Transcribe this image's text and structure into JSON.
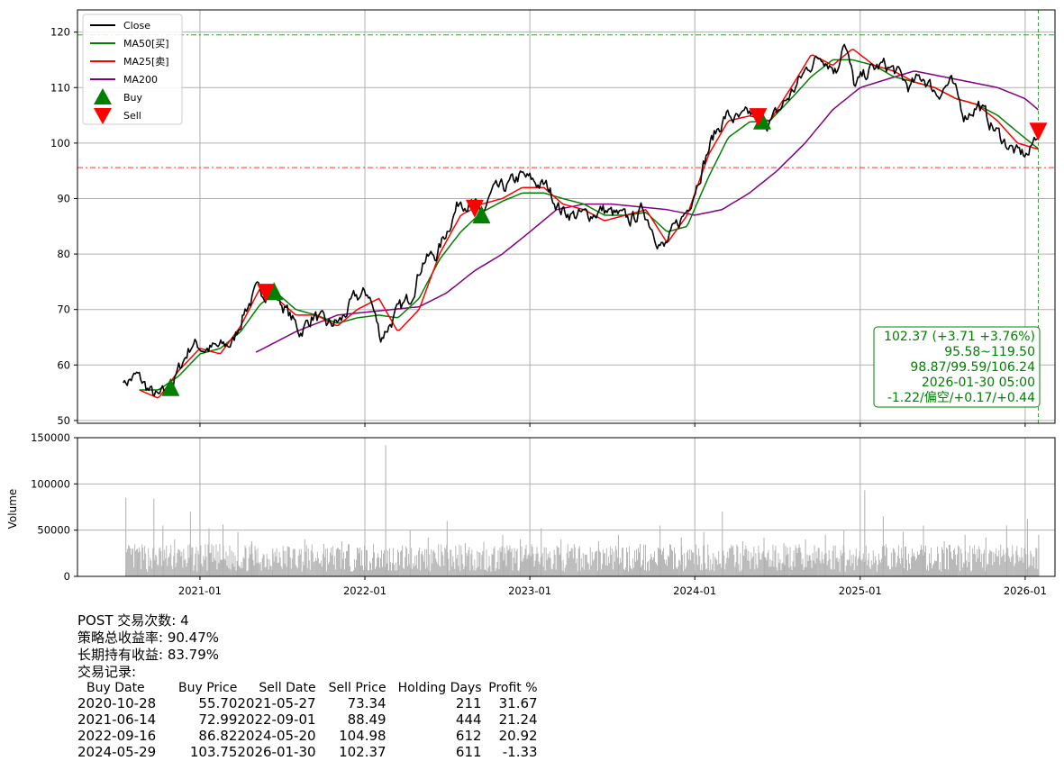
{
  "chart_data": [
    {
      "type": "line",
      "panel": "price",
      "xlim": [
        "2020-04-05",
        "2026-03-08"
      ],
      "ylim": [
        49.5,
        124
      ],
      "x_ticks": [
        "2021-01",
        "2022-01",
        "2023-01",
        "2024-01",
        "2025-01",
        "2026-01"
      ],
      "y_ticks": [
        50,
        60,
        70,
        80,
        90,
        100,
        110,
        120
      ],
      "grid": true,
      "legend_position": "top-left",
      "legend": [
        "Close",
        "MA50[买]",
        "MA25[卖]",
        "MA200",
        "Buy",
        "Sell"
      ],
      "series": [
        {
          "name": "Close",
          "color": "#000000",
          "x": [
            "2020-07-15",
            "2020-08-15",
            "2020-09-15",
            "2020-10-01",
            "2020-10-28",
            "2020-11-20",
            "2020-12-15",
            "2021-01-10",
            "2021-02-10",
            "2021-03-15",
            "2021-04-10",
            "2021-05-05",
            "2021-05-27",
            "2021-06-14",
            "2021-07-10",
            "2021-08-10",
            "2021-09-10",
            "2021-10-10",
            "2021-11-10",
            "2021-12-10",
            "2022-01-10",
            "2022-02-05",
            "2022-03-10",
            "2022-04-10",
            "2022-05-10",
            "2022-06-10",
            "2022-07-10",
            "2022-08-01",
            "2022-09-01",
            "2022-09-16",
            "2022-10-10",
            "2022-11-10",
            "2022-12-10",
            "2023-01-10",
            "2023-02-10",
            "2023-03-10",
            "2023-04-10",
            "2023-05-10",
            "2023-06-10",
            "2023-07-10",
            "2023-08-10",
            "2023-09-10",
            "2023-10-10",
            "2023-10-25",
            "2023-11-15",
            "2023-12-15",
            "2024-01-10",
            "2024-02-10",
            "2024-03-10",
            "2024-04-10",
            "2024-05-01",
            "2024-05-20",
            "2024-05-29",
            "2024-06-20",
            "2024-07-15",
            "2024-08-10",
            "2024-09-10",
            "2024-10-10",
            "2024-11-10",
            "2024-11-25",
            "2024-12-20",
            "2025-01-20",
            "2025-02-20",
            "2025-03-20",
            "2025-04-20",
            "2025-05-20",
            "2025-06-20",
            "2025-07-20",
            "2025-08-20",
            "2025-09-20",
            "2025-10-20",
            "2025-11-20",
            "2025-12-15",
            "2026-01-10",
            "2026-01-30"
          ],
          "values": [
            56.8,
            58,
            55,
            54,
            55.7,
            60,
            64,
            63,
            63,
            64,
            70,
            73,
            73.3,
            73,
            70,
            66,
            69,
            67,
            68,
            72,
            73,
            65,
            69,
            72,
            79,
            80,
            86,
            90,
            88.5,
            86.8,
            91,
            92,
            94,
            93,
            92,
            88,
            87,
            87,
            88,
            87,
            86,
            88,
            83,
            81,
            84,
            88,
            94,
            101,
            105,
            104,
            105,
            105,
            103.8,
            104,
            107,
            110,
            114,
            116,
            113,
            119,
            110,
            113,
            114,
            113,
            110,
            112,
            109,
            111,
            105,
            107,
            103,
            100,
            98,
            98,
            102.4
          ]
        },
        {
          "name": "MA50[买]",
          "color": "#008000",
          "x": [
            "2020-08-20",
            "2020-10-01",
            "2020-11-15",
            "2021-01-01",
            "2021-02-15",
            "2021-04-01",
            "2021-05-15",
            "2021-06-20",
            "2021-08-01",
            "2021-09-15",
            "2021-11-01",
            "2021-12-15",
            "2022-02-01",
            "2022-03-15",
            "2022-05-01",
            "2022-06-15",
            "2022-08-01",
            "2022-09-16",
            "2022-11-01",
            "2022-12-15",
            "2023-02-01",
            "2023-03-15",
            "2023-05-01",
            "2023-06-15",
            "2023-08-01",
            "2023-09-15",
            "2023-11-01",
            "2023-12-15",
            "2024-02-01",
            "2024-03-15",
            "2024-05-01",
            "2024-06-15",
            "2024-08-01",
            "2024-09-15",
            "2024-11-01",
            "2024-12-15",
            "2025-02-01",
            "2025-03-15",
            "2025-05-01",
            "2025-06-15",
            "2025-08-01",
            "2025-09-15",
            "2025-11-01",
            "2025-12-15",
            "2026-01-30"
          ],
          "values": [
            55.5,
            55.5,
            58,
            62,
            63,
            66,
            71,
            73,
            70,
            69,
            67.5,
            68.5,
            69,
            68.5,
            72,
            79,
            84,
            87.5,
            89.5,
            91,
            91,
            90,
            89,
            87,
            87,
            87.5,
            84,
            85,
            94,
            101,
            103.8,
            104,
            108,
            112,
            115,
            115,
            114,
            112,
            111,
            110,
            108,
            107,
            105,
            102,
            99
          ]
        },
        {
          "name": "MA25[卖]",
          "color": "#ff0000",
          "x": [
            "2020-08-20",
            "2020-10-01",
            "2020-11-15",
            "2021-01-01",
            "2021-02-15",
            "2021-04-01",
            "2021-05-15",
            "2021-06-20",
            "2021-08-01",
            "2021-09-15",
            "2021-11-01",
            "2021-12-15",
            "2022-02-01",
            "2022-03-15",
            "2022-05-01",
            "2022-06-15",
            "2022-08-01",
            "2022-09-16",
            "2022-11-01",
            "2022-12-15",
            "2023-02-01",
            "2023-03-15",
            "2023-05-01",
            "2023-06-15",
            "2023-08-01",
            "2023-09-15",
            "2023-11-01",
            "2023-12-15",
            "2024-02-01",
            "2024-03-15",
            "2024-05-01",
            "2024-06-15",
            "2024-08-01",
            "2024-09-15",
            "2024-11-01",
            "2024-12-15",
            "2025-02-01",
            "2025-03-15",
            "2025-05-01",
            "2025-06-15",
            "2025-08-01",
            "2025-09-15",
            "2025-11-01",
            "2025-12-15",
            "2026-01-30"
          ],
          "values": [
            55.5,
            54,
            59,
            63,
            62,
            67,
            74,
            72,
            69,
            69,
            67,
            70,
            72,
            66,
            70,
            80,
            87,
            89,
            90,
            92,
            92,
            89,
            88,
            86,
            87,
            88,
            82,
            87,
            98,
            104,
            104.9,
            104,
            110,
            116,
            114,
            117,
            114,
            113,
            111,
            110,
            108,
            107,
            104,
            100,
            98.9
          ]
        },
        {
          "name": "MA200",
          "color": "#800080",
          "x": [
            "2021-05-05",
            "2021-08-01",
            "2021-11-01",
            "2022-01-01",
            "2022-03-01",
            "2022-05-01",
            "2022-07-01",
            "2022-09-01",
            "2022-11-01",
            "2023-01-01",
            "2023-03-01",
            "2023-05-01",
            "2023-07-01",
            "2023-09-01",
            "2023-11-01",
            "2024-01-01",
            "2024-03-01",
            "2024-05-01",
            "2024-07-01",
            "2024-09-01",
            "2024-11-01",
            "2025-01-01",
            "2025-03-01",
            "2025-05-01",
            "2025-07-01",
            "2025-09-01",
            "2025-11-01",
            "2026-01-01",
            "2026-01-30"
          ],
          "values": [
            62.3,
            66,
            69,
            69.5,
            70,
            70.5,
            73,
            77,
            80,
            84,
            88,
            89,
            89,
            88.5,
            88,
            87,
            88,
            91,
            95,
            100,
            106,
            110,
            111.5,
            113,
            112,
            111,
            110,
            108,
            106
          ]
        }
      ],
      "markers": [
        {
          "name": "Buy",
          "color": "#008000",
          "x": [
            "2020-10-28",
            "2021-06-14",
            "2022-09-16",
            "2024-05-29"
          ],
          "values": [
            55.7,
            72.99,
            86.82,
            103.75
          ]
        },
        {
          "name": "Sell",
          "color": "#ff0000",
          "x": [
            "2021-05-27",
            "2022-09-01",
            "2024-05-20",
            "2026-01-30"
          ],
          "values": [
            73.34,
            88.49,
            104.98,
            102.37
          ]
        }
      ],
      "hlines": [
        {
          "value": 119.5,
          "color": "#008000",
          "style": "dashdot"
        },
        {
          "value": 95.58,
          "color": "#ff0000",
          "style": "dashdot"
        }
      ],
      "vline": {
        "x": "2026-01-30",
        "color": "#008000",
        "style": "dashed"
      },
      "info_box": {
        "lines": [
          "102.37 (+3.71 +3.76%)",
          "95.58~119.50",
          "98.87/99.59/106.24",
          "2026-01-30 05:00",
          "-1.22/偏空/+0.17/+0.44"
        ],
        "color": "#008000"
      }
    },
    {
      "type": "bar",
      "panel": "volume",
      "ylabel": "Volume",
      "ylim": [
        0,
        150000
      ],
      "y_ticks": [
        "0",
        "50000",
        "100000",
        "150000"
      ],
      "xlim": [
        "2020-04-05",
        "2026-03-08"
      ],
      "color": "#b0b0b0",
      "grid": true,
      "series": [
        {
          "name": "Volume",
          "x": [
            "2020-07-20",
            "2020-08-15",
            "2020-09-20",
            "2020-10-10",
            "2020-11-05",
            "2020-12-10",
            "2021-01-20",
            "2021-02-20",
            "2021-03-25",
            "2021-04-25",
            "2021-06-10",
            "2021-07-15",
            "2021-08-20",
            "2021-10-01",
            "2021-11-10",
            "2021-12-20",
            "2022-02-15",
            "2022-04-10",
            "2022-05-20",
            "2022-07-01",
            "2022-08-10",
            "2022-09-20",
            "2022-11-01",
            "2022-12-10",
            "2023-01-25",
            "2023-03-10",
            "2023-04-20",
            "2023-06-01",
            "2023-07-15",
            "2023-09-01",
            "2023-10-15",
            "2023-12-01",
            "2024-01-20",
            "2024-03-01",
            "2024-04-15",
            "2024-06-01",
            "2024-07-15",
            "2024-09-01",
            "2024-10-15",
            "2024-11-25",
            "2025-01-10",
            "2025-02-20",
            "2025-04-05",
            "2025-05-20",
            "2025-07-05",
            "2025-08-20",
            "2025-10-05",
            "2025-11-20",
            "2026-01-05",
            "2026-01-30"
          ],
          "values": [
            85000,
            30000,
            84000,
            55000,
            40000,
            70000,
            52000,
            56000,
            48000,
            38000,
            30000,
            32000,
            40000,
            35000,
            38000,
            30000,
            142000,
            50000,
            42000,
            60000,
            36000,
            37000,
            45000,
            40000,
            52000,
            40000,
            32000,
            38000,
            45000,
            35000,
            55000,
            42000,
            48000,
            70000,
            38000,
            42000,
            36000,
            40000,
            45000,
            50000,
            93000,
            65000,
            48000,
            55000,
            38000,
            45000,
            42000,
            55000,
            62000,
            45000
          ]
        }
      ]
    }
  ],
  "summary": {
    "trade_count": "POST 交易次数: 4",
    "strategy_return": "策略总收益率: 90.47%",
    "hold_return": "长期持有收益: 83.79%",
    "records_title": "交易记录:"
  },
  "trades": {
    "headers": [
      "Buy Date",
      "Buy Price",
      "Sell Date",
      "Sell Price",
      "Holding Days",
      "Profit %"
    ],
    "rows": [
      [
        "2020-10-28",
        "55.70",
        "2021-05-27",
        "73.34",
        "211",
        "31.67"
      ],
      [
        "2021-06-14",
        "72.99",
        "2022-09-01",
        "88.49",
        "444",
        "21.24"
      ],
      [
        "2022-09-16",
        "86.82",
        "2024-05-20",
        "104.98",
        "612",
        "20.92"
      ],
      [
        "2024-05-29",
        "103.75",
        "2026-01-30",
        "102.37",
        "611",
        "-1.33"
      ]
    ]
  }
}
